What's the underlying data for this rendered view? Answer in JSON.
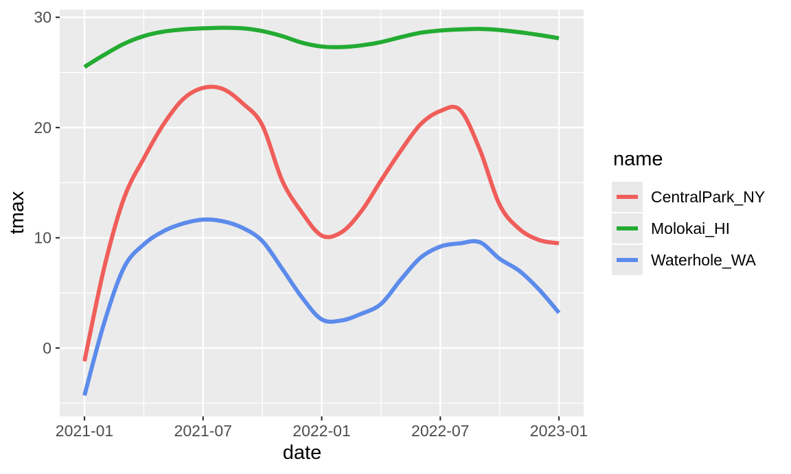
{
  "figure": {
    "background": "#FFFFFF",
    "panel_background": "#EBEBEB",
    "grid_color": "#FFFFFF",
    "tick_color": "#333333",
    "tick_label_color": "#4D4D4D",
    "title_color": "#000000"
  },
  "chart_data": {
    "type": "line",
    "title": "",
    "xlabel": "date",
    "ylabel": "tmax",
    "legend_title": "name",
    "legend_position": "right",
    "grid": true,
    "ylim": [
      -6.2,
      30.7
    ],
    "y_ticks": [
      0,
      10,
      20,
      30
    ],
    "y_minor": [
      -5,
      5,
      15,
      25
    ],
    "x": [
      "2021-01",
      "2021-02",
      "2021-03",
      "2021-04",
      "2021-05",
      "2021-06",
      "2021-07",
      "2021-08",
      "2021-09",
      "2021-10",
      "2021-11",
      "2021-12",
      "2022-01",
      "2022-02",
      "2022-03",
      "2022-04",
      "2022-05",
      "2022-06",
      "2022-07",
      "2022-08",
      "2022-09",
      "2022-10",
      "2022-11",
      "2022-12",
      "2023-01"
    ],
    "x_ticks": [
      {
        "label": "2021-01",
        "i": 0
      },
      {
        "label": "2021-07",
        "i": 6
      },
      {
        "label": "2022-01",
        "i": 12
      },
      {
        "label": "2022-07",
        "i": 18
      },
      {
        "label": "2023-01",
        "i": 24
      }
    ],
    "x_minor_i": [
      3,
      9,
      15,
      21
    ],
    "series": [
      {
        "name": "CentralPark_NY",
        "color": "#F05E5A",
        "values": [
          -1.2,
          7.3,
          13.6,
          17.2,
          20.3,
          22.6,
          23.6,
          23.5,
          22.2,
          20.2,
          15.2,
          12.3,
          10.2,
          10.5,
          12.4,
          15.2,
          17.9,
          20.3,
          21.5,
          21.6,
          18.0,
          13.0,
          10.8,
          9.8,
          9.5
        ]
      },
      {
        "name": "Molokai_HI",
        "color": "#23AB32",
        "values": [
          25.5,
          26.6,
          27.6,
          28.3,
          28.7,
          28.9,
          29.0,
          29.05,
          29.0,
          28.75,
          28.3,
          27.7,
          27.35,
          27.3,
          27.45,
          27.75,
          28.2,
          28.6,
          28.8,
          28.9,
          28.95,
          28.85,
          28.65,
          28.4,
          28.1
        ]
      },
      {
        "name": "Waterhole_WA",
        "color": "#5C8BEB",
        "values": [
          -4.3,
          2.3,
          7.3,
          9.4,
          10.6,
          11.3,
          11.65,
          11.5,
          10.9,
          9.7,
          7.2,
          4.6,
          2.6,
          2.5,
          3.1,
          4.0,
          6.2,
          8.2,
          9.2,
          9.5,
          9.6,
          8.1,
          7.0,
          5.3,
          3.2
        ]
      }
    ]
  }
}
